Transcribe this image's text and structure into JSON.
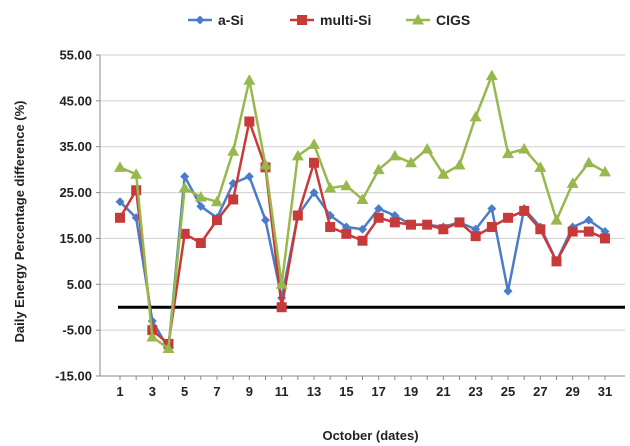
{
  "chart_data": {
    "type": "line",
    "title": "",
    "xlabel": "October (dates)",
    "ylabel": "Daily Energy Percentage difference (%)",
    "ylim": [
      -15,
      55
    ],
    "yticks": [
      "55.00",
      "45.00",
      "35.00",
      "25.00",
      "15.00",
      "5.00",
      "-5.00",
      "-15.00"
    ],
    "ytick_values": [
      55,
      45,
      35,
      25,
      15,
      5,
      -5,
      -15
    ],
    "xlim": [
      1,
      31
    ],
    "xticks": [
      1,
      3,
      5,
      7,
      9,
      11,
      13,
      15,
      17,
      19,
      21,
      23,
      25,
      27,
      29,
      31
    ],
    "legend_position": "top",
    "grid": "horizontal",
    "reference_line": 0,
    "x": [
      1,
      2,
      3,
      4,
      5,
      6,
      7,
      8,
      9,
      10,
      11,
      12,
      13,
      14,
      15,
      16,
      17,
      18,
      19,
      20,
      21,
      22,
      23,
      24,
      25,
      26,
      27,
      28,
      29,
      30,
      31
    ],
    "series": [
      {
        "name": "a-Si",
        "color": "#4a7dc9",
        "marker": "diamond",
        "values": [
          23,
          19.5,
          -3,
          -9,
          28.5,
          22,
          19.5,
          27,
          28.5,
          19,
          2,
          20,
          25,
          20,
          17.5,
          17,
          21.5,
          20,
          18,
          18,
          17.5,
          18.5,
          17,
          21.5,
          3.5,
          21.5,
          17.5,
          10,
          17.5,
          19,
          16.5
        ]
      },
      {
        "name": "multi-Si",
        "color": "#c83a3a",
        "marker": "square",
        "values": [
          19.5,
          25.5,
          -5,
          -8,
          16,
          14,
          19,
          23.5,
          40.5,
          30.5,
          0,
          20,
          31.5,
          17.5,
          16,
          14.5,
          19.5,
          18.5,
          18,
          18,
          17,
          18.5,
          15.5,
          17.5,
          19.5,
          21,
          17,
          10,
          16.5,
          16.5,
          15
        ]
      },
      {
        "name": "CIGS",
        "color": "#97b84c",
        "marker": "triangle",
        "values": [
          30.5,
          29,
          -6.5,
          -9,
          26,
          24,
          23,
          34,
          49.5,
          31,
          5,
          33,
          35.5,
          26,
          26.5,
          23.5,
          30,
          33,
          31.5,
          34.5,
          29,
          31,
          41.5,
          50.5,
          33.5,
          34.5,
          30.5,
          19,
          27,
          31.5,
          29.5
        ]
      }
    ]
  }
}
